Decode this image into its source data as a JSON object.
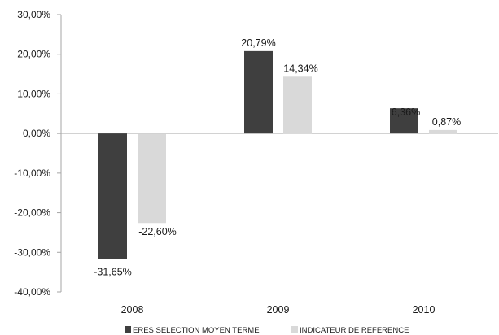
{
  "chart_data": {
    "type": "bar",
    "title": "",
    "xlabel": "",
    "ylabel": "",
    "categories": [
      "2008",
      "2009",
      "2010"
    ],
    "series": [
      {
        "name": "ERES SELECTION MOYEN TERME",
        "values": [
          -31.65,
          20.79,
          6.36
        ],
        "labels": [
          "-31,65%",
          "20,79%",
          "6,36%"
        ],
        "color": "#3f3f3f"
      },
      {
        "name": "INDICATEUR DE REFERENCE",
        "values": [
          -22.6,
          14.34,
          0.87
        ],
        "labels": [
          "-22,60%",
          "14,34%",
          "0,87%"
        ],
        "color": "#d9d9d9"
      }
    ],
    "ylim": [
      -40,
      30
    ],
    "yticks": [
      30,
      20,
      10,
      0,
      -10,
      -20,
      -30,
      -40
    ],
    "ytick_labels": [
      "30,00%",
      "20,00%",
      "10,00%",
      "0,00%",
      "-10,00%",
      "-20,00%",
      "-30,00%",
      "-40,00%"
    ],
    "grid": false,
    "legend_position": "bottom"
  }
}
